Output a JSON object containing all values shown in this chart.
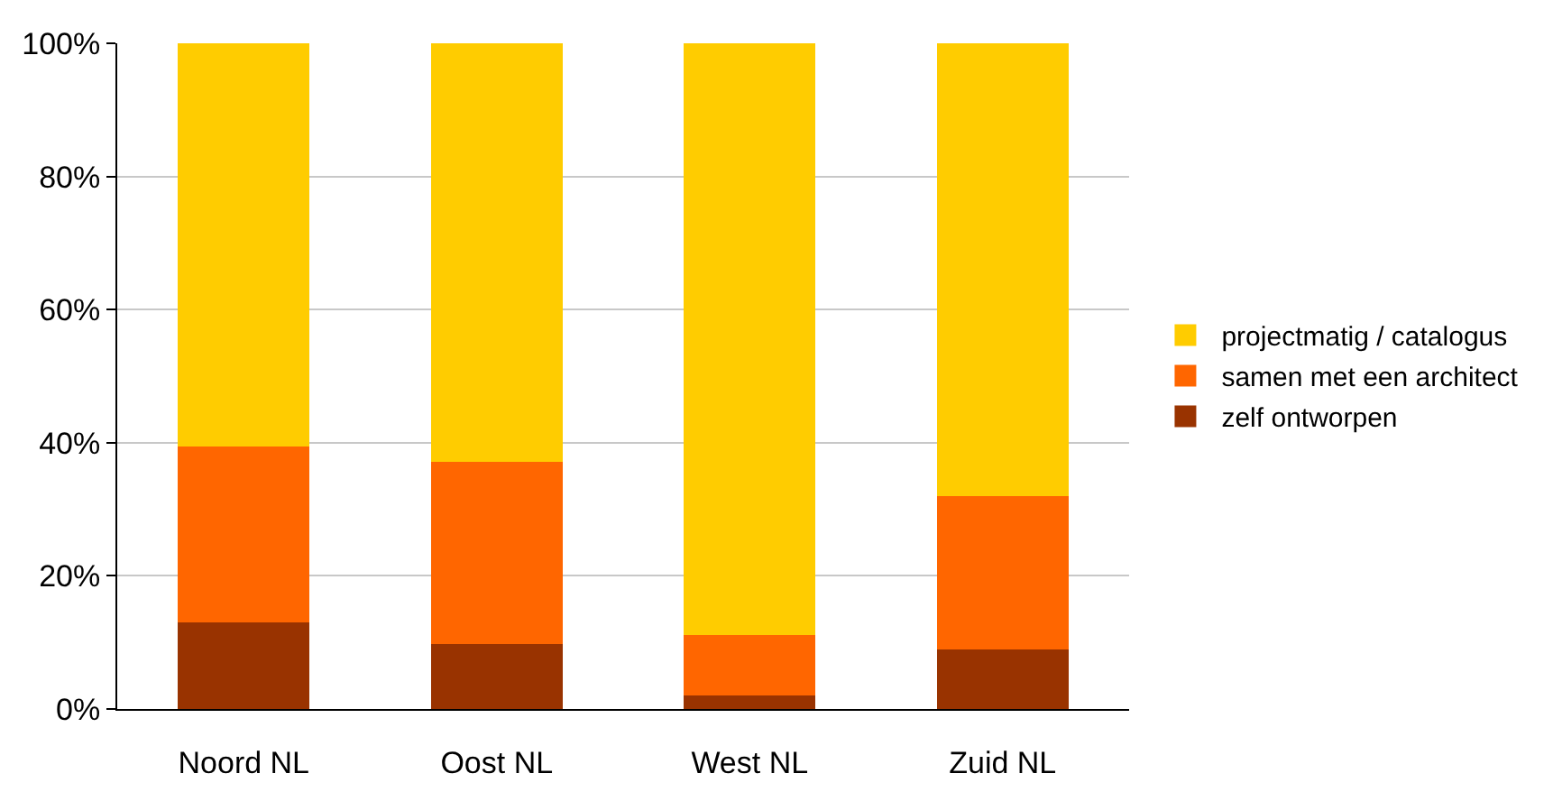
{
  "chart_data": {
    "type": "bar",
    "stacked": true,
    "categories": [
      "Noord NL",
      "Oost NL",
      "West NL",
      "Zuid NL"
    ],
    "series": [
      {
        "name": "zelf ontworpen",
        "color": "#993300",
        "values": [
          13.0,
          9.8,
          2.1,
          9.0
        ]
      },
      {
        "name": "samen met een architect",
        "color": "#ff6600",
        "values": [
          26.4,
          27.3,
          9.0,
          23.0
        ]
      },
      {
        "name": "projectmatig / catalogus",
        "color": "#ffcc00",
        "values": [
          60.6,
          62.9,
          88.9,
          68.0
        ]
      }
    ],
    "ylim": [
      0,
      100
    ],
    "yticks": [
      {
        "value": 0,
        "label": "0%"
      },
      {
        "value": 20,
        "label": "20%"
      },
      {
        "value": 40,
        "label": "40%"
      },
      {
        "value": 60,
        "label": "60%"
      },
      {
        "value": 80,
        "label": "80%"
      },
      {
        "value": 100,
        "label": "100%"
      }
    ],
    "grid": "y",
    "legend": "right"
  }
}
